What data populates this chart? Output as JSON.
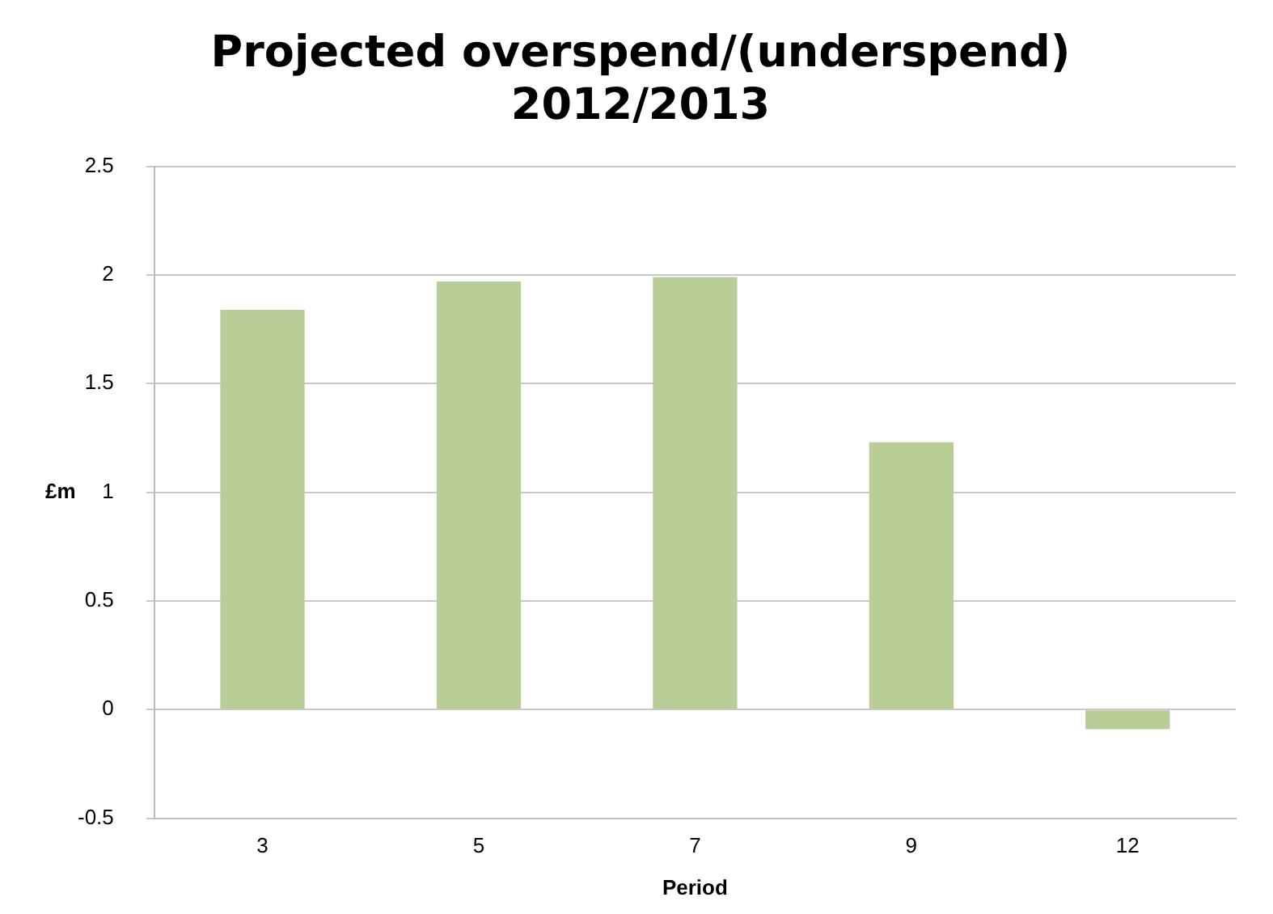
{
  "chart_data": {
    "type": "bar",
    "title": "Projected overspend/(underspend) 2012/2013",
    "xlabel": "Period",
    "ylabel": "£m",
    "categories": [
      "3",
      "5",
      "7",
      "9",
      "12"
    ],
    "values": [
      1.84,
      1.97,
      1.99,
      1.23,
      -0.09
    ],
    "color": "#b9cd96",
    "ylim": [
      -0.5,
      2.5
    ],
    "yticks": [
      -0.5,
      0,
      0.5,
      1,
      1.5,
      2,
      2.5
    ],
    "grid": "y",
    "legend": false
  }
}
